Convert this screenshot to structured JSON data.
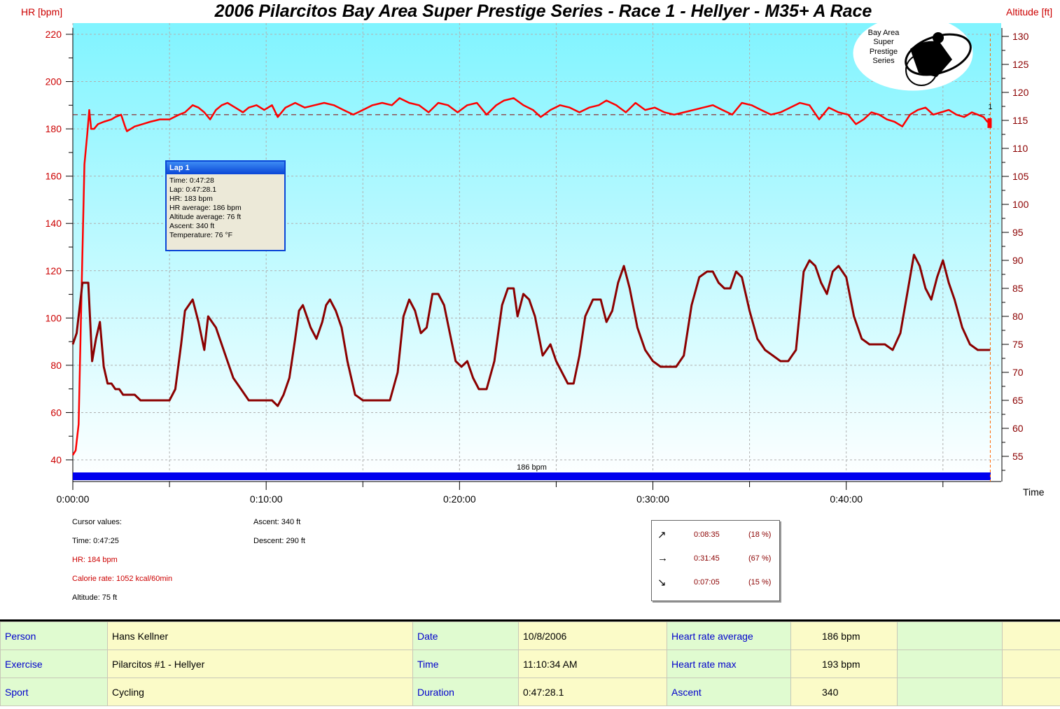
{
  "chart_data": {
    "type": "line",
    "title": "2006 Pilarcitos Bay Area Super Prestige Series - Race 1  - Hellyer - M35+ A Race",
    "ylabel_left": "HR [bpm]",
    "ylabel_right": "Altitude [ft]",
    "xlabel": "Time",
    "x_unit": "minutes",
    "xlim": [
      0,
      47.47
    ],
    "ylim_left": [
      30,
      225
    ],
    "ylim_right": [
      50.5,
      131.5
    ],
    "x_ticks": [
      "0:00:00",
      "0:10:00",
      "0:20:00",
      "0:30:00",
      "0:40:00"
    ],
    "y_ticks_left": [
      40,
      60,
      80,
      100,
      120,
      140,
      160,
      180,
      200,
      220
    ],
    "y_ticks_right": [
      55,
      60,
      65,
      70,
      75,
      80,
      85,
      90,
      95,
      100,
      105,
      110,
      115,
      120,
      125,
      130
    ],
    "grid": true,
    "series": [
      {
        "name": "HR",
        "axis": "left",
        "color": "#ff0000",
        "x": [
          0,
          0.15,
          0.3,
          0.45,
          0.6,
          0.75,
          0.85,
          0.95,
          1.1,
          1.3,
          1.6,
          2.0,
          2.2,
          2.5,
          2.7,
          2.8,
          3.0,
          3.2,
          3.6,
          4.0,
          4.5,
          5.0,
          5.5,
          5.8,
          6.2,
          6.5,
          6.8,
          7.1,
          7.4,
          7.7,
          8.0,
          8.4,
          8.8,
          9.1,
          9.5,
          9.9,
          10.3,
          10.6,
          11.0,
          11.5,
          12.0,
          12.5,
          13.0,
          13.5,
          14.0,
          14.5,
          15.0,
          15.5,
          16.0,
          16.5,
          16.9,
          17.4,
          17.9,
          18.4,
          18.9,
          19.4,
          19.9,
          20.4,
          20.9,
          21.4,
          21.9,
          22.3,
          22.8,
          23.3,
          23.8,
          24.2,
          24.7,
          25.2,
          25.7,
          26.2,
          26.7,
          27.2,
          27.6,
          28.1,
          28.6,
          29.1,
          29.6,
          30.1,
          30.6,
          31.1,
          31.6,
          32.1,
          32.6,
          33.1,
          33.6,
          34.1,
          34.6,
          35.1,
          35.6,
          36.1,
          36.6,
          37.1,
          37.6,
          38.1,
          38.6,
          39.1,
          39.6,
          40.1,
          40.5,
          40.9,
          41.3,
          41.7,
          42.1,
          42.5,
          42.9,
          43.3,
          43.7,
          44.1,
          44.5,
          44.9,
          45.3,
          45.7,
          46.1,
          46.5,
          46.8,
          47.1,
          47.3,
          47.45
        ],
        "y": [
          42,
          44,
          55,
          110,
          165,
          178,
          188,
          180,
          180,
          182,
          183,
          184,
          185,
          186,
          181,
          179,
          180,
          181,
          182,
          183,
          184,
          184,
          186,
          187,
          190,
          189,
          187,
          184,
          188,
          190,
          191,
          189,
          187,
          189,
          190,
          188,
          190,
          185,
          189,
          191,
          189,
          190,
          191,
          190,
          188,
          186,
          188,
          190,
          191,
          190,
          193,
          191,
          190,
          187,
          191,
          190,
          187,
          190,
          191,
          186,
          190,
          192,
          193,
          190,
          188,
          185,
          188,
          190,
          189,
          187,
          189,
          190,
          192,
          190,
          187,
          191,
          188,
          189,
          187,
          186,
          187,
          188,
          189,
          190,
          188,
          186,
          191,
          190,
          188,
          186,
          187,
          189,
          191,
          190,
          184,
          189,
          187,
          186,
          182,
          184,
          187,
          186,
          184,
          183,
          181,
          186,
          188,
          189,
          186,
          187,
          188,
          186,
          185,
          187,
          186,
          185,
          183,
          183
        ]
      },
      {
        "name": "Altitude",
        "axis": "right",
        "color": "#8b0000",
        "x": [
          0,
          0.2,
          0.5,
          0.8,
          1.0,
          1.2,
          1.4,
          1.6,
          1.8,
          2.0,
          2.2,
          2.4,
          2.6,
          2.8,
          3.0,
          3.2,
          3.5,
          3.8,
          4.2,
          5.0,
          5.3,
          5.6,
          5.8,
          6.0,
          6.2,
          6.5,
          6.8,
          7.0,
          7.2,
          7.4,
          7.6,
          7.8,
          8.0,
          8.3,
          8.7,
          9.1,
          9.5,
          9.9,
          10.3,
          10.6,
          10.9,
          11.2,
          11.5,
          11.7,
          11.9,
          12.1,
          12.3,
          12.6,
          12.9,
          13.1,
          13.3,
          13.6,
          13.9,
          14.2,
          14.6,
          15.0,
          15.5,
          16.0,
          16.4,
          16.8,
          17.1,
          17.4,
          17.7,
          18.0,
          18.3,
          18.6,
          18.9,
          19.2,
          19.5,
          19.8,
          20.1,
          20.4,
          20.7,
          21.0,
          21.4,
          21.8,
          22.2,
          22.5,
          22.8,
          23.0,
          23.3,
          23.6,
          23.9,
          24.3,
          24.7,
          25.0,
          25.3,
          25.6,
          25.9,
          26.2,
          26.5,
          26.9,
          27.3,
          27.6,
          27.9,
          28.2,
          28.5,
          28.8,
          29.2,
          29.6,
          30.0,
          30.4,
          30.8,
          31.2,
          31.6,
          32.0,
          32.4,
          32.8,
          33.1,
          33.4,
          33.7,
          34.0,
          34.3,
          34.6,
          35.0,
          35.4,
          35.8,
          36.2,
          36.6,
          37.0,
          37.4,
          37.8,
          38.1,
          38.4,
          38.7,
          39.0,
          39.3,
          39.6,
          40.0,
          40.4,
          40.8,
          41.2,
          41.6,
          42.0,
          42.4,
          42.8,
          43.2,
          43.5,
          43.8,
          44.1,
          44.4,
          44.7,
          45.0,
          45.3,
          45.6,
          46.0,
          46.4,
          46.8,
          47.2,
          47.45
        ],
        "y": [
          75,
          77,
          86,
          86,
          72,
          76,
          79,
          71,
          68,
          68,
          67,
          67,
          66,
          66,
          66,
          66,
          65,
          65,
          65,
          65,
          67,
          75,
          81,
          82,
          83,
          79,
          74,
          80,
          79,
          78,
          76,
          74,
          72,
          69,
          67,
          65,
          65,
          65,
          65,
          64,
          66,
          69,
          76,
          81,
          82,
          80,
          78,
          76,
          79,
          82,
          83,
          81,
          78,
          72,
          66,
          65,
          65,
          65,
          65,
          70,
          80,
          83,
          81,
          77,
          78,
          84,
          84,
          82,
          77,
          72,
          71,
          72,
          69,
          67,
          67,
          72,
          82,
          85,
          85,
          80,
          84,
          83,
          80,
          73,
          75,
          72,
          70,
          68,
          68,
          73,
          80,
          83,
          83,
          79,
          81,
          86,
          89,
          85,
          78,
          74,
          72,
          71,
          71,
          71,
          73,
          82,
          87,
          88,
          88,
          86,
          85,
          85,
          88,
          87,
          81,
          76,
          74,
          73,
          72,
          72,
          74,
          88,
          90,
          89,
          86,
          84,
          88,
          89,
          87,
          80,
          76,
          75,
          75,
          75,
          74,
          77,
          85,
          91,
          89,
          85,
          83,
          87,
          90,
          86,
          83,
          78,
          75,
          74,
          74,
          74
        ]
      }
    ],
    "reference_line": {
      "axis": "left",
      "value": 186,
      "label": "186 bpm",
      "style": "dashed"
    },
    "lap_marker": {
      "x": 47.45,
      "label": "1"
    },
    "bar_label": "186 bpm"
  },
  "axis_labels": {
    "hr": "HR [bpm]",
    "altitude": "Altitude [ft]",
    "time": "Time"
  },
  "logo": {
    "line1": "Bay Area",
    "line2": "Super",
    "line3": "Prestige",
    "line4": "Series"
  },
  "lap_popup": {
    "title": "Lap 1",
    "lines": [
      "Time: 0:47:28",
      "Lap: 0:47:28.1",
      "HR: 183 bpm",
      "HR average:  186 bpm",
      "Altitude average:  76 ft",
      "Ascent:  340 ft",
      "Temperature: 76 °F"
    ]
  },
  "cursor_values": {
    "heading": "Cursor values:",
    "time": "Time: 0:47:25",
    "hr": "HR: 184 bpm",
    "calorie": "Calorie rate: 1052 kcal/60min",
    "altitude": "Altitude: 75 ft",
    "ascent": "Ascent: 340 ft",
    "descent": "Descent: 290 ft"
  },
  "slope_summary": [
    {
      "icon": "uphill-arrow-icon",
      "glyph": "↗",
      "time": "0:08:35",
      "percent": "(18 %)"
    },
    {
      "icon": "flat-arrow-icon",
      "glyph": "→",
      "time": "0:31:45",
      "percent": "(67 %)"
    },
    {
      "icon": "downhill-arrow-icon",
      "glyph": "↘",
      "time": "0:07:05",
      "percent": "(15 %)"
    }
  ],
  "info_table": {
    "rows": [
      [
        "Person",
        "Hans Kellner",
        "Date",
        "10/8/2006",
        "Heart rate average",
        "186 bpm",
        "",
        ""
      ],
      [
        "Exercise",
        "Pilarcitos #1 - Hellyer",
        "Time",
        "11:10:34 AM",
        "Heart rate max",
        "193 bpm",
        "",
        ""
      ],
      [
        "Sport",
        "Cycling",
        "Duration",
        "0:47:28.1",
        "Ascent",
        "340",
        "",
        ""
      ]
    ]
  },
  "colors": {
    "hr_line": "#ff0000",
    "altitude_line": "#8b0000",
    "plot_bg_top": "#80f4ff",
    "plot_bg_bottom": "#ffffff",
    "reference_bar": "#0000ee",
    "label_cells": "#e0fbd0",
    "value_cells": "#fbfbc8"
  }
}
